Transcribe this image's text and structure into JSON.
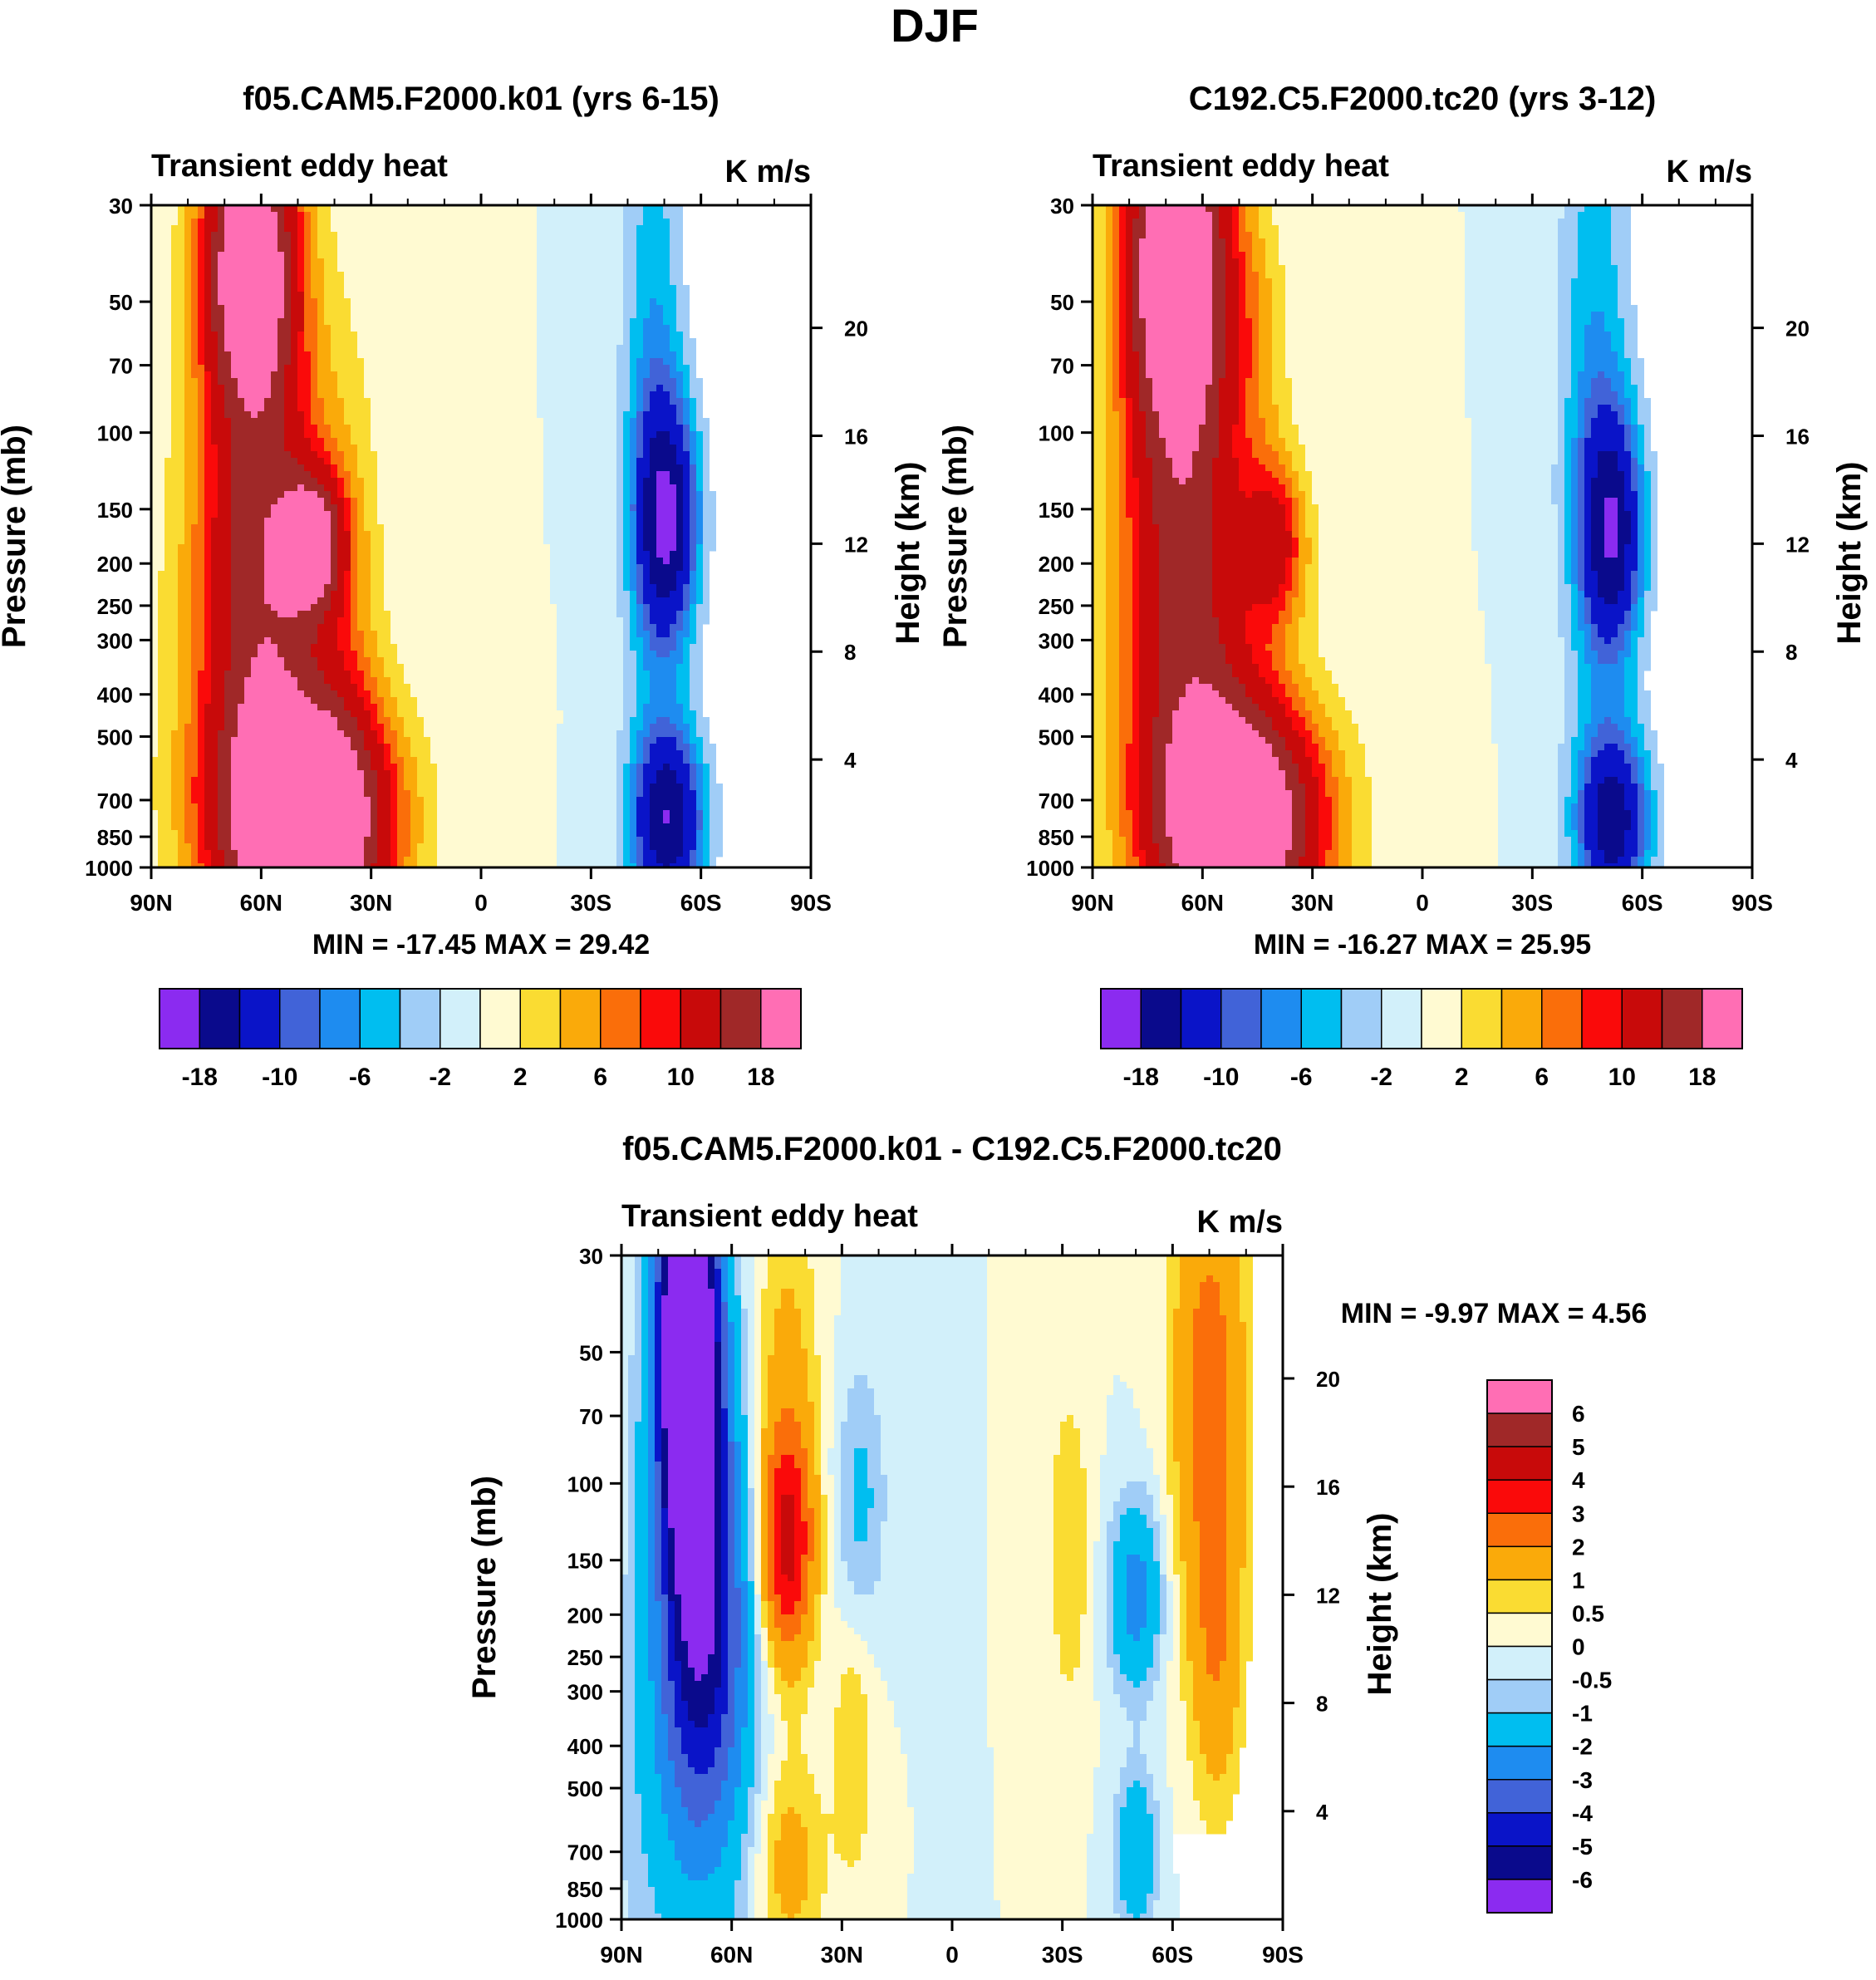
{
  "title": "DJF",
  "chart_data": [
    {
      "type": "heatmap",
      "title": "f05.CAM5.F2000.k01 (yrs 6-15)",
      "subtitle_left": "Transient eddy heat",
      "subtitle_right": "K m/s",
      "ylabel": "Pressure (mb)",
      "ylabel_right": "Height (km)",
      "x_ticks": [
        "90N",
        "60N",
        "30N",
        "0",
        "30S",
        "60S",
        "90S"
      ],
      "y_ticks": [
        "30",
        "50",
        "70",
        "100",
        "150",
        "200",
        "250",
        "300",
        "400",
        "500",
        "700",
        "850",
        "1000"
      ],
      "y_ticks_right": [
        "20",
        "16",
        "12",
        "8",
        "4"
      ],
      "stats": "MIN = -17.45  MAX =  29.42",
      "min": -17.45,
      "max": 29.42,
      "colorbar_labels": [
        "-18",
        "-10",
        "-6",
        "-2",
        "2",
        "6",
        "10",
        "18"
      ],
      "features": [
        {
          "lat": 63,
          "p": 40,
          "value": 24,
          "wlat": 9,
          "wp": 0.55
        },
        {
          "lat": 60,
          "p": 200,
          "value": 13,
          "wlat": 12,
          "wp": 0.9
        },
        {
          "lat": 48,
          "p": 790,
          "value": 28,
          "wlat": 16,
          "wp": 0.45
        },
        {
          "lat": 46,
          "p": 180,
          "value": 17,
          "wlat": 6,
          "wp": 0.25
        },
        {
          "lat": 62,
          "p": 360,
          "value": 4,
          "wlat": 16,
          "wp": 1.0
        },
        {
          "lat": 36,
          "p": 300,
          "value": 3,
          "wlat": 7,
          "wp": 1.2
        },
        {
          "lat": -51,
          "p": 160,
          "value": -16,
          "wlat": 6,
          "wp": 0.45
        },
        {
          "lat": -51,
          "p": 780,
          "value": -17,
          "wlat": 7,
          "wp": 0.35
        },
        {
          "lat": -47,
          "p": 80,
          "value": -6,
          "wlat": 6,
          "wp": 1.3
        }
      ]
    },
    {
      "type": "heatmap",
      "title": "C192.C5.F2000.tc20 (yrs 3-12)",
      "subtitle_left": "Transient eddy heat",
      "subtitle_right": "K m/s",
      "ylabel": "Pressure (mb)",
      "ylabel_right": "Height (km)",
      "x_ticks": [
        "90N",
        "60N",
        "30N",
        "0",
        "30S",
        "60S",
        "90S"
      ],
      "y_ticks": [
        "30",
        "50",
        "70",
        "100",
        "150",
        "200",
        "250",
        "300",
        "400",
        "500",
        "700",
        "850",
        "1000"
      ],
      "y_ticks_right": [
        "20",
        "16",
        "12",
        "8",
        "4"
      ],
      "stats": "MIN = -16.27  MAX =  25.95",
      "min": -16.27,
      "max": 25.95,
      "colorbar_labels": [
        "-18",
        "-10",
        "-6",
        "-2",
        "2",
        "6",
        "10",
        "18"
      ],
      "features": [
        {
          "lat": 67,
          "p": 40,
          "value": 26,
          "wlat": 10,
          "wp": 0.65
        },
        {
          "lat": 65,
          "p": 200,
          "value": 12,
          "wlat": 12,
          "wp": 0.9
        },
        {
          "lat": 50,
          "p": 790,
          "value": 26,
          "wlat": 16,
          "wp": 0.45
        },
        {
          "lat": 40,
          "p": 180,
          "value": 10,
          "wlat": 6,
          "wp": 0.3
        },
        {
          "lat": 62,
          "p": 360,
          "value": 4,
          "wlat": 16,
          "wp": 1.0
        },
        {
          "lat": 45,
          "p": 60,
          "value": 3,
          "wlat": 6,
          "wp": 0.5
        },
        {
          "lat": -52,
          "p": 170,
          "value": -15,
          "wlat": 6,
          "wp": 0.45
        },
        {
          "lat": -52,
          "p": 790,
          "value": -16,
          "wlat": 7,
          "wp": 0.35
        },
        {
          "lat": -47,
          "p": 80,
          "value": -6,
          "wlat": 7,
          "wp": 1.3
        }
      ]
    },
    {
      "type": "heatmap",
      "title": "f05.CAM5.F2000.k01 - C192.C5.F2000.tc20",
      "subtitle_left": "Transient eddy heat",
      "subtitle_right": "K m/s",
      "ylabel": "Pressure (mb)",
      "ylabel_right": "Height (km)",
      "x_ticks": [
        "90N",
        "60N",
        "30N",
        "0",
        "30S",
        "60S",
        "90S"
      ],
      "y_ticks": [
        "30",
        "50",
        "70",
        "100",
        "150",
        "200",
        "250",
        "300",
        "400",
        "500",
        "700",
        "850",
        "1000"
      ],
      "y_ticks_right": [
        "20",
        "16",
        "12",
        "8",
        "4"
      ],
      "stats": "MIN =  -9.97  MAX =   4.56",
      "min": -9.97,
      "max": 4.56,
      "colorbar_labels": [
        "6",
        "5",
        "4",
        "3",
        "2",
        "1",
        "0.5",
        "0",
        "-0.5",
        "-1",
        "-2",
        "-3",
        "-4",
        "-5",
        "-6"
      ],
      "features": [
        {
          "lat": 72,
          "p": 45,
          "value": -10,
          "wlat": 6,
          "wp": 0.75
        },
        {
          "lat": 68,
          "p": 180,
          "value": -5,
          "wlat": 8,
          "wp": 0.8
        },
        {
          "lat": 70,
          "p": 450,
          "value": -1.5,
          "wlat": 14,
          "wp": 0.9
        },
        {
          "lat": 45,
          "p": 140,
          "value": 3.5,
          "wlat": 5,
          "wp": 0.4
        },
        {
          "lat": 45,
          "p": 80,
          "value": 1.5,
          "wlat": 6,
          "wp": 0.9
        },
        {
          "lat": 45,
          "p": 750,
          "value": 1.5,
          "wlat": 7,
          "wp": 0.4
        },
        {
          "lat": 25,
          "p": 110,
          "value": -1.2,
          "wlat": 5,
          "wp": 0.5
        },
        {
          "lat": 27,
          "p": 400,
          "value": 1,
          "wlat": 4,
          "wp": 0.5
        },
        {
          "lat": -32,
          "p": 140,
          "value": 1,
          "wlat": 4,
          "wp": 0.6
        },
        {
          "lat": -50,
          "p": 180,
          "value": -2.5,
          "wlat": 5,
          "wp": 0.35
        },
        {
          "lat": -50,
          "p": 700,
          "value": -2,
          "wlat": 4,
          "wp": 0.3
        },
        {
          "lat": -70,
          "p": 60,
          "value": 2.5,
          "wlat": 7,
          "wp": 0.9
        },
        {
          "lat": -72,
          "p": 250,
          "value": 1.5,
          "wlat": 5,
          "wp": 0.6
        }
      ]
    }
  ],
  "palettes": {
    "totals": [
      "#8b2bf0",
      "#0a0a8c",
      "#0a14c8",
      "#4163d8",
      "#1e8cf0",
      "#00bef0",
      "#a0cdf7",
      "#d2f0fa",
      "#fffad2",
      "#fadc32",
      "#faaa0a",
      "#fa6e0a",
      "#fa0a0a",
      "#c80a0a",
      "#a02828",
      "#ff6eb4"
    ],
    "totals_levels": [
      -18,
      -14,
      -10,
      -8,
      -6,
      -4,
      -2,
      0,
      2,
      4,
      6,
      8,
      10,
      14,
      18
    ],
    "diff": [
      "#8b2bf0",
      "#0a0a8c",
      "#0a14c8",
      "#4163d8",
      "#1e8cf0",
      "#00bef0",
      "#a0cdf7",
      "#d2f0fa",
      "#fffad2",
      "#fadc32",
      "#faaa0a",
      "#fa6e0a",
      "#fa0a0a",
      "#c80a0a",
      "#a02828",
      "#ff6eb4"
    ],
    "diff_levels": [
      -6,
      -5,
      -4,
      -3,
      -2,
      -1,
      -0.5,
      0,
      0.5,
      1,
      2,
      3,
      4,
      5,
      6
    ]
  }
}
